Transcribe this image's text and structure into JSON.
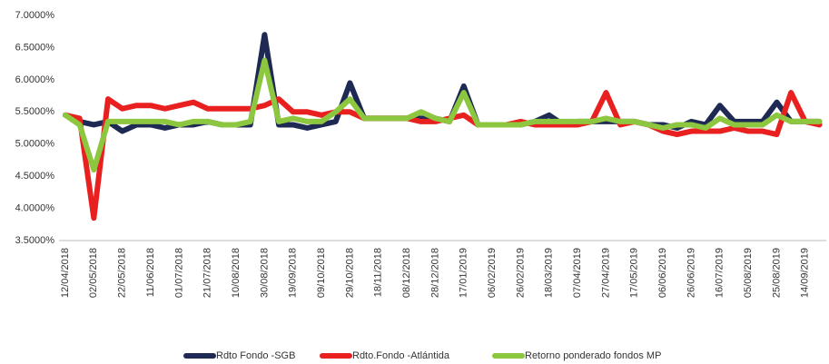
{
  "chart_data": {
    "type": "line",
    "categories": [
      "12/04/2018",
      null,
      "02/05/2018",
      null,
      "22/05/2018",
      null,
      "11/06/2018",
      null,
      "01/07/2018",
      null,
      "21/07/2018",
      null,
      "10/08/2018",
      null,
      "30/08/2018",
      null,
      "19/09/2018",
      null,
      "09/10/2018",
      null,
      "29/10/2018",
      null,
      "18/11/2018",
      null,
      "08/12/2018",
      null,
      "28/12/2018",
      null,
      "17/01/2019",
      null,
      "06/02/2019",
      null,
      "26/02/2019",
      null,
      "18/03/2019",
      null,
      "07/04/2019",
      null,
      "27/04/2019",
      null,
      "17/05/2019",
      null,
      "06/06/2019",
      null,
      "26/06/2019",
      null,
      "16/07/2019",
      null,
      "05/08/2019",
      null,
      "25/08/2019",
      null,
      "14/09/2019",
      null
    ],
    "series": [
      {
        "name": "Rdto Fondo -SGB",
        "color": "#1f2a54",
        "values": [
          5.45,
          5.35,
          5.3,
          5.35,
          5.2,
          5.3,
          5.3,
          5.25,
          5.3,
          5.3,
          5.35,
          5.3,
          5.3,
          5.3,
          6.7,
          5.3,
          5.3,
          5.25,
          5.3,
          5.35,
          5.95,
          5.4,
          5.4,
          5.4,
          5.4,
          5.4,
          5.4,
          5.35,
          5.9,
          5.3,
          5.3,
          5.3,
          5.3,
          5.35,
          5.45,
          5.3,
          5.35,
          5.35,
          5.35,
          5.35,
          5.35,
          5.3,
          5.3,
          5.25,
          5.35,
          5.3,
          5.6,
          5.35,
          5.35,
          5.35,
          5.65,
          5.35,
          5.35,
          5.35
        ]
      },
      {
        "name": "Rdto.Fondo -Atlántida",
        "color": "#e8201f",
        "values": [
          5.45,
          5.4,
          3.85,
          5.7,
          5.55,
          5.6,
          5.6,
          5.55,
          5.6,
          5.65,
          5.55,
          5.55,
          5.55,
          5.55,
          5.6,
          5.7,
          5.5,
          5.5,
          5.45,
          5.5,
          5.5,
          5.4,
          5.4,
          5.4,
          5.4,
          5.35,
          5.35,
          5.4,
          5.45,
          5.3,
          5.3,
          5.3,
          5.35,
          5.3,
          5.3,
          5.3,
          5.3,
          5.35,
          5.8,
          5.3,
          5.35,
          5.3,
          5.2,
          5.15,
          5.2,
          5.2,
          5.2,
          5.25,
          5.2,
          5.2,
          5.15,
          5.8,
          5.35,
          5.3
        ]
      },
      {
        "name": "Retorno ponderado fondos MP",
        "color": "#8dc63f",
        "values": [
          5.45,
          5.3,
          4.6,
          5.35,
          5.35,
          5.35,
          5.35,
          5.35,
          5.3,
          5.35,
          5.35,
          5.3,
          5.3,
          5.35,
          6.3,
          5.35,
          5.4,
          5.35,
          5.35,
          5.5,
          5.7,
          5.4,
          5.4,
          5.4,
          5.4,
          5.5,
          5.4,
          5.35,
          5.8,
          5.3,
          5.3,
          5.3,
          5.3,
          5.35,
          5.35,
          5.35,
          5.35,
          5.35,
          5.4,
          5.35,
          5.35,
          5.3,
          5.25,
          5.3,
          5.3,
          5.25,
          5.4,
          5.3,
          5.3,
          5.3,
          5.45,
          5.35,
          5.35,
          5.35
        ]
      }
    ],
    "ylim": [
      3.5,
      7.0
    ],
    "yticks": [
      {
        "value": 3.5,
        "label": "3.5000%"
      },
      {
        "value": 4.0,
        "label": "4.0000%"
      },
      {
        "value": 4.5,
        "label": "4.5000%"
      },
      {
        "value": 5.0,
        "label": "5.0000%"
      },
      {
        "value": 5.5,
        "label": "5.5000%"
      },
      {
        "value": 6.0,
        "label": "6.0000%"
      },
      {
        "value": 6.5,
        "label": "6.5000%"
      },
      {
        "value": 7.0,
        "label": "7.0000%"
      }
    ],
    "grid": false,
    "legend": "bottom"
  }
}
